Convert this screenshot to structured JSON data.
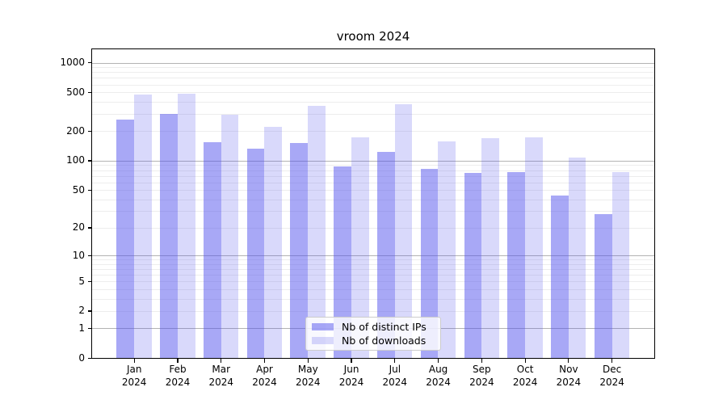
{
  "chart_data": {
    "type": "bar",
    "title": "vroom 2024",
    "categories": [
      "Jan",
      "Feb",
      "Mar",
      "Apr",
      "May",
      "Jun",
      "Jul",
      "Aug",
      "Sep",
      "Oct",
      "Nov",
      "Dec"
    ],
    "x_year_label": "2024",
    "series": [
      {
        "name": "Nb of distinct IPs",
        "color": "rgba(82,82,238,0.5)",
        "values": [
          265,
          300,
          156,
          132,
          152,
          87,
          122,
          82,
          75,
          76,
          44,
          28
        ]
      },
      {
        "name": "Nb of downloads",
        "color": "rgba(82,82,238,0.22)",
        "values": [
          470,
          485,
          297,
          222,
          365,
          173,
          380,
          158,
          170,
          172,
          107,
          76
        ]
      }
    ],
    "yticks": [
      0,
      1,
      2,
      5,
      10,
      20,
      50,
      100,
      200,
      500,
      1000
    ],
    "yscale": "log1p",
    "ylim": [
      0,
      1380
    ],
    "xlabel": "",
    "ylabel": "",
    "grid": "both",
    "legend_position": "lower-center"
  },
  "colors": {
    "bar_dark": "rgba(82,82,238,0.5)",
    "bar_light": "rgba(82,82,238,0.22)",
    "grid_major": "#b3b3b3",
    "grid_minor": "#ededed",
    "spine": "#000000",
    "legend_border": "#cccccc"
  }
}
